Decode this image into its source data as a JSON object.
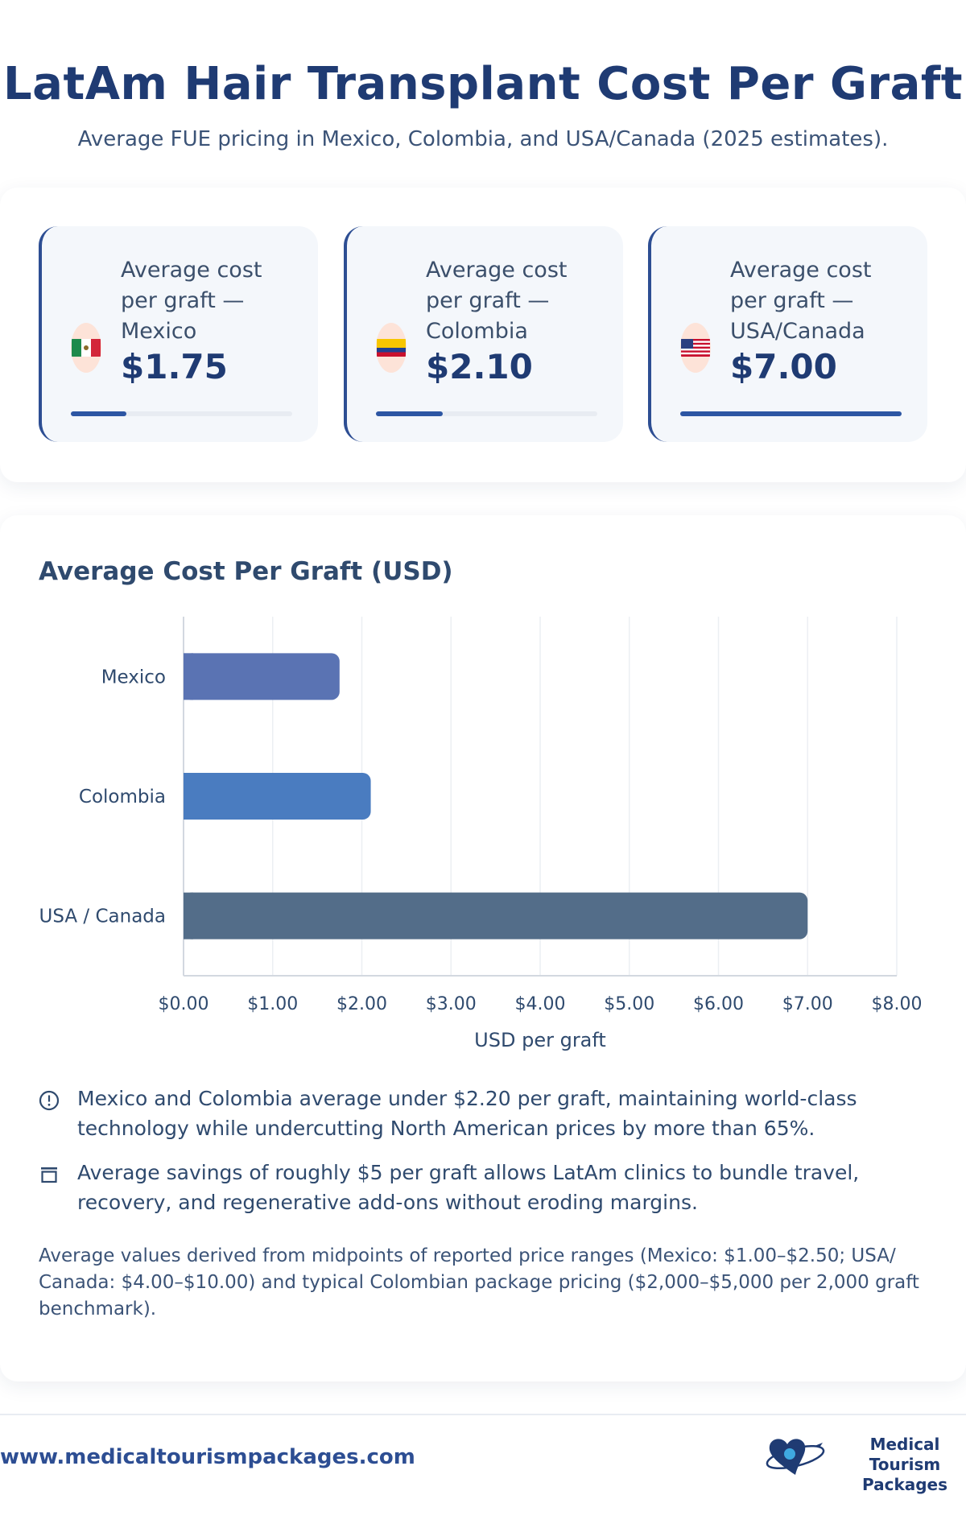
{
  "header": {
    "title": "LatAm Hair Transplant Cost Per Graft",
    "subtitle": "Average FUE pricing in Mexico, Colombia, and USA/Canada (2025 estimates)."
  },
  "kpis": [
    {
      "label": "Average cost per graft — Mexico",
      "value": "$1.75",
      "fraction": 0.25,
      "flag": "mexico-flag-icon"
    },
    {
      "label": "Average cost per graft — Colombia",
      "value": "$2.10",
      "fraction": 0.3,
      "flag": "colombia-flag-icon"
    },
    {
      "label": "Average cost per graft — USA/Canada",
      "value": "$7.00",
      "fraction": 1.0,
      "flag": "usa-flag-icon"
    }
  ],
  "chart_data": {
    "type": "bar",
    "orientation": "horizontal",
    "title": "Average Cost Per Graft (USD)",
    "categories": [
      "Mexico",
      "Colombia",
      "USA / Canada"
    ],
    "values": [
      1.75,
      2.1,
      7.0
    ],
    "colors": [
      "#5a73b3",
      "#4a7cc0",
      "#536d89"
    ],
    "xlabel": "USD per graft",
    "ylabel": "",
    "xlim": [
      0,
      8
    ],
    "xticks": [
      "$0.00",
      "$1.00",
      "$2.00",
      "$3.00",
      "$4.00",
      "$5.00",
      "$6.00",
      "$7.00",
      "$8.00"
    ],
    "grid": true,
    "legend": "none"
  },
  "notes": [
    {
      "icon": "alert-circle-icon",
      "text": "Mexico and Colombia average under $2.20 per graft, maintaining world-class technology while undercutting North American prices by more than 65%."
    },
    {
      "icon": "savings-box-icon",
      "text": "Average savings of roughly $5 per graft allows LatAm clinics to bundle travel, recovery, and regenerative add-ons without eroding margins."
    }
  ],
  "footnote": "Average values derived from midpoints of reported price ranges (Mexico: $1.00–$2.50; USA/ Canada: $4.00–$10.00) and typical Colombian package pricing ($2,000–$5,000 per 2,000 graft benchmark).",
  "footer": {
    "url": "www.medicaltourismpackages.com",
    "logo_line1": "Medical Tourism",
    "logo_line2": "Packages"
  },
  "colors": {
    "accent": "#1f3b73",
    "bar_fill": "#2d56a3"
  }
}
